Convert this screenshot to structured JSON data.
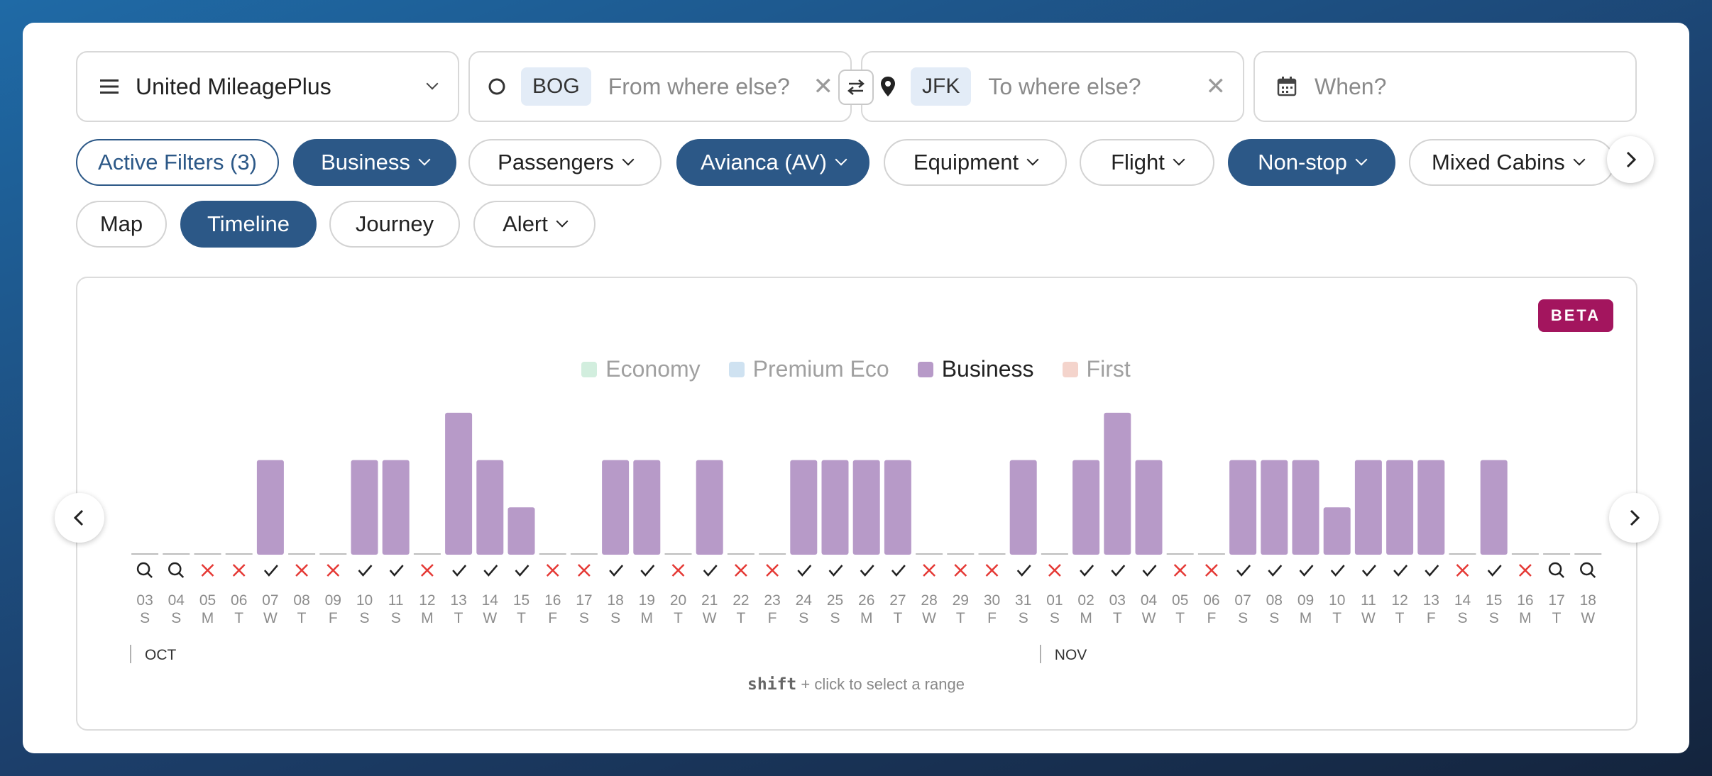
{
  "search": {
    "program": "United MileagePlus",
    "from_code": "BOG",
    "from_placeholder": "From where else?",
    "to_code": "JFK",
    "to_placeholder": "To where else?",
    "when_placeholder": "When?"
  },
  "filters": {
    "active": "Active Filters (3)",
    "cabin": "Business",
    "passengers": "Passengers",
    "airline": "Avianca (AV)",
    "equipment": "Equipment",
    "flight": "Flight",
    "stops": "Non-stop",
    "mixed": "Mixed Cabins"
  },
  "views": {
    "map": "Map",
    "timeline": "Timeline",
    "journey": "Journey",
    "alert": "Alert"
  },
  "badge": "BETA",
  "legend": [
    {
      "label": "Economy",
      "color": "#d2eede",
      "active": false
    },
    {
      "label": "Premium Eco",
      "color": "#cfe2f1",
      "active": false
    },
    {
      "label": "Business",
      "color": "#b79ac8",
      "active": true
    },
    {
      "label": "First",
      "color": "#f4d4cc",
      "active": false
    }
  ],
  "hint": {
    "key": "shift",
    "text": "+ click to select a range"
  },
  "chart_data": {
    "type": "bar",
    "categories": [
      "03",
      "04",
      "05",
      "06",
      "07",
      "08",
      "09",
      "10",
      "11",
      "12",
      "13",
      "14",
      "15",
      "16",
      "17",
      "18",
      "19",
      "20",
      "21",
      "22",
      "23",
      "24",
      "25",
      "26",
      "27",
      "28",
      "29",
      "30",
      "31",
      "01",
      "02",
      "03",
      "04",
      "05",
      "06",
      "07",
      "08",
      "09",
      "10",
      "11",
      "12",
      "13",
      "14",
      "15",
      "16",
      "17",
      "18"
    ],
    "weekdays": [
      "S",
      "S",
      "M",
      "T",
      "W",
      "T",
      "F",
      "S",
      "S",
      "M",
      "T",
      "W",
      "T",
      "F",
      "S",
      "S",
      "M",
      "T",
      "W",
      "T",
      "F",
      "S",
      "S",
      "M",
      "T",
      "W",
      "T",
      "F",
      "S",
      "S",
      "M",
      "T",
      "W",
      "T",
      "F",
      "S",
      "S",
      "M",
      "T",
      "W",
      "T",
      "F",
      "S",
      "S",
      "M",
      "T",
      "W"
    ],
    "status": [
      "search",
      "search",
      "x",
      "x",
      "check",
      "x",
      "x",
      "check",
      "check",
      "x",
      "check",
      "check",
      "check",
      "x",
      "x",
      "check",
      "check",
      "x",
      "check",
      "x",
      "x",
      "check",
      "check",
      "check",
      "check",
      "x",
      "x",
      "x",
      "check",
      "x",
      "check",
      "check",
      "check",
      "x",
      "x",
      "check",
      "check",
      "check",
      "check",
      "check",
      "check",
      "check",
      "x",
      "check",
      "x",
      "search",
      "search"
    ],
    "series": [
      {
        "name": "Business",
        "values": [
          0,
          0,
          0,
          0,
          2,
          0,
          0,
          2,
          2,
          0,
          3,
          2,
          1,
          0,
          0,
          2,
          2,
          0,
          2,
          0,
          0,
          2,
          2,
          2,
          2,
          0,
          0,
          0,
          2,
          0,
          2,
          3,
          2,
          0,
          0,
          2,
          2,
          2,
          1,
          2,
          2,
          2,
          0,
          2,
          0,
          0,
          0
        ]
      }
    ],
    "months": [
      {
        "label": "OCT",
        "start_index": 0
      },
      {
        "label": "NOV",
        "start_index": 29
      }
    ],
    "bar_color": "#b79ac8",
    "ylim": [
      0,
      3
    ]
  }
}
